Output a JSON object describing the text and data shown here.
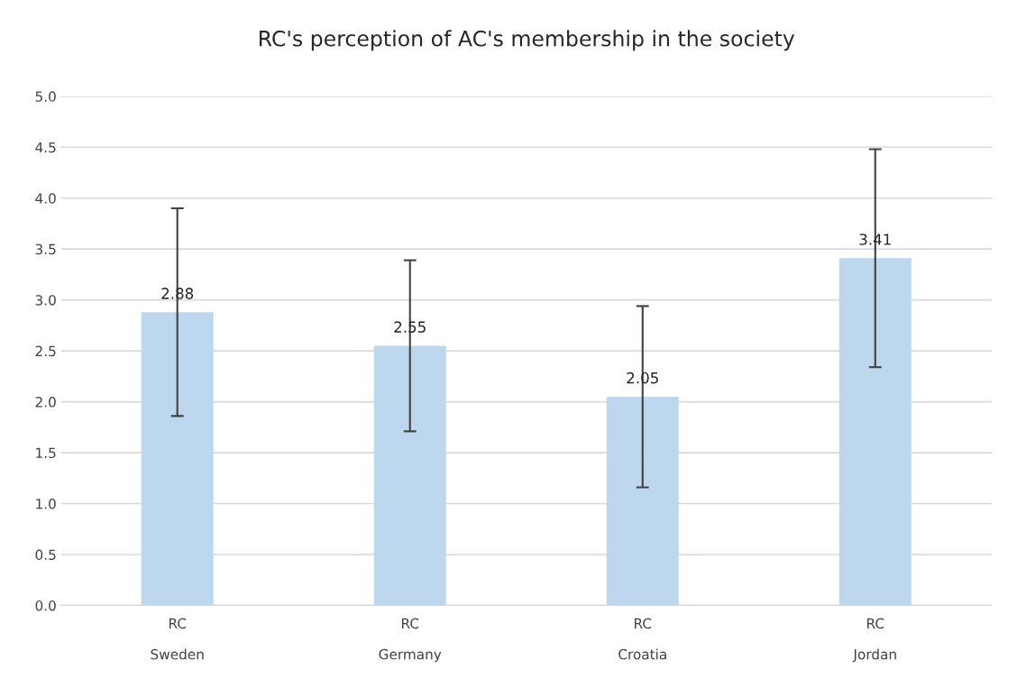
{
  "chart_data": {
    "type": "bar",
    "title": "RC's perception of AC's membership in the society",
    "categories": [
      "RC\n\nSweden",
      "RC\n\nGermany",
      "RC\n\nCroatia",
      "RC\n\nJordan"
    ],
    "values": [
      2.88,
      2.55,
      2.05,
      3.41
    ],
    "errors": [
      1.02,
      0.84,
      0.89,
      1.07
    ],
    "color": "#bdd7ee",
    "ylim": [
      0,
      5
    ],
    "yticks": [
      {
        "value": 0,
        "label": "0.0"
      },
      {
        "value": 0.5,
        "label": "0.5"
      },
      {
        "value": 1,
        "label": "1.0"
      },
      {
        "value": 1.5,
        "label": "1.5"
      },
      {
        "value": 2,
        "label": "2.0"
      },
      {
        "value": 2.5,
        "label": "2.5"
      },
      {
        "value": 3,
        "label": "3.0"
      },
      {
        "value": 3.5,
        "label": "3.5"
      },
      {
        "value": 4,
        "label": "4.0"
      },
      {
        "value": 4.5,
        "label": "4.5"
      },
      {
        "value": 5,
        "label": "5.0"
      }
    ],
    "grid": "y",
    "data_labels": true
  }
}
